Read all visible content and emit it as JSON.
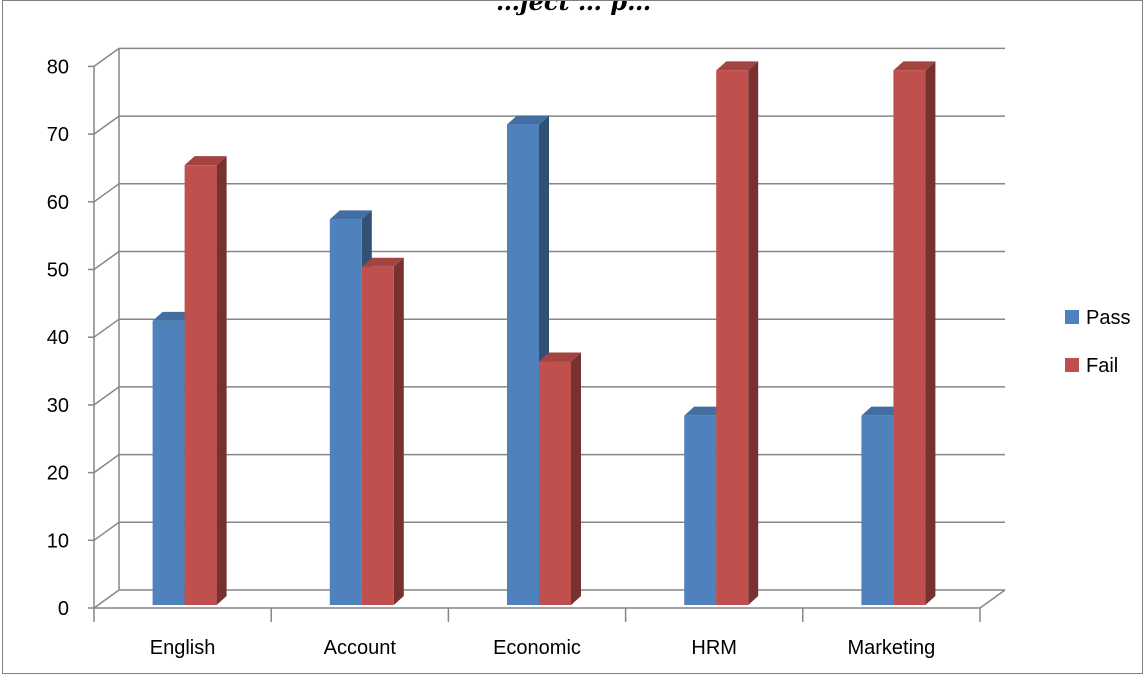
{
  "chart_data": {
    "type": "bar",
    "title": "…ject … p…",
    "categories": [
      "English",
      "Account",
      "Economic",
      "HRM",
      "Marketing"
    ],
    "series": [
      {
        "name": "Pass",
        "values": [
          43,
          58,
          72,
          29,
          29
        ],
        "color": "#4f81bd"
      },
      {
        "name": "Fail",
        "values": [
          66,
          51,
          37,
          80,
          80
        ],
        "color": "#c0504d"
      }
    ],
    "y_ticks": [
      0,
      10,
      20,
      30,
      40,
      50,
      60,
      70,
      80
    ],
    "ylim": [
      0,
      80
    ],
    "xlabel": "",
    "ylabel": "",
    "grid": true,
    "legend_position": "right",
    "style": "3d-clustered-column"
  }
}
